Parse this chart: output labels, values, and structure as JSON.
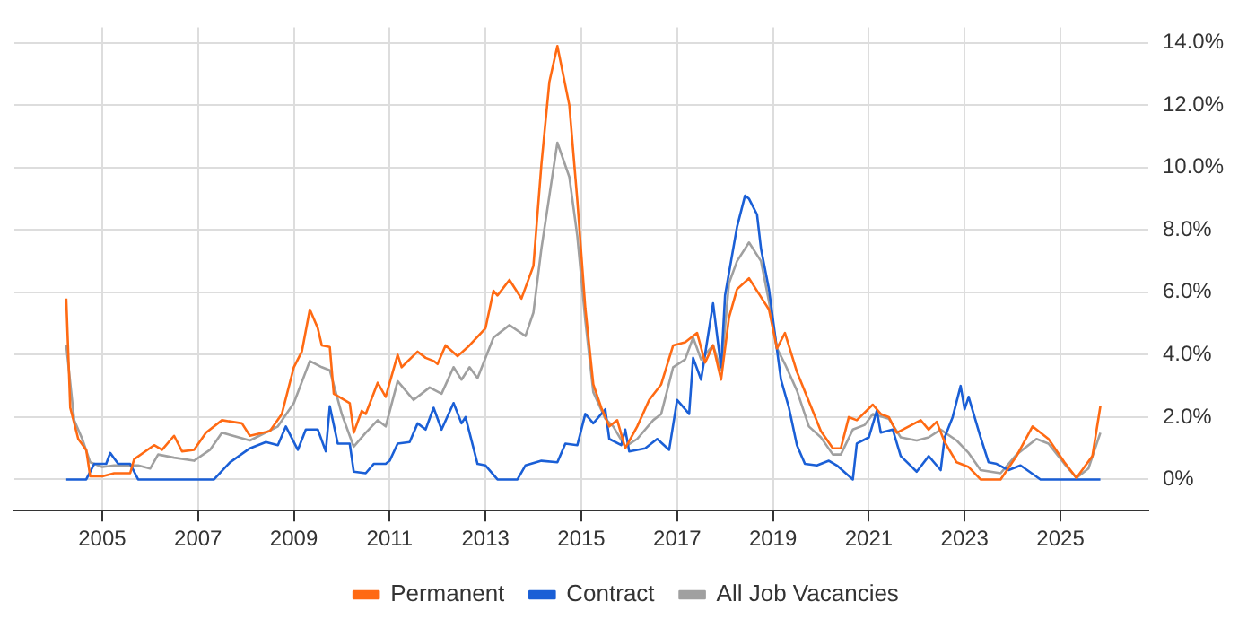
{
  "chart_data": {
    "type": "line",
    "xlim": [
      "2003-03",
      "2026-11"
    ],
    "xticks": [
      "2005",
      "2007",
      "2009",
      "2011",
      "2013",
      "2015",
      "2017",
      "2019",
      "2021",
      "2023",
      "2025"
    ],
    "ylim": [
      -1,
      14.5
    ],
    "yticks": [
      {
        "value": 0,
        "label": "0%"
      },
      {
        "value": 2,
        "label": "2.0%"
      },
      {
        "value": 4,
        "label": "4.0%"
      },
      {
        "value": 6,
        "label": "6.0%"
      },
      {
        "value": 8,
        "label": "8.0%"
      },
      {
        "value": 10,
        "label": "10.0%"
      },
      {
        "value": 12,
        "label": "12.0%"
      },
      {
        "value": 14,
        "label": "14.0%"
      }
    ],
    "grid": true,
    "legend": "bottom",
    "marker": "none",
    "line_style": "solid",
    "series": [
      {
        "name": "Permanent",
        "color": "#ff6a13",
        "x": [
          "2004-04",
          "2004-05",
          "2004-07",
          "2004-09",
          "2004-10",
          "2005-01",
          "2005-04",
          "2005-08",
          "2005-09",
          "2006-02",
          "2006-04",
          "2006-07",
          "2006-09",
          "2006-12",
          "2007-03",
          "2007-07",
          "2007-12",
          "2008-02",
          "2008-07",
          "2008-10",
          "2009-01",
          "2009-03",
          "2009-05",
          "2009-07",
          "2009-08",
          "2009-10",
          "2009-11",
          "2010-03",
          "2010-04",
          "2010-06",
          "2010-07",
          "2010-10",
          "2010-12",
          "2011-03",
          "2011-04",
          "2011-08",
          "2011-10",
          "2011-12",
          "2012-01",
          "2012-03",
          "2012-06",
          "2012-09",
          "2013-01",
          "2013-03",
          "2013-04",
          "2013-07",
          "2013-10",
          "2014-01",
          "2014-03",
          "2014-05",
          "2014-07",
          "2014-10",
          "2014-12",
          "2015-02",
          "2015-04",
          "2015-06",
          "2015-08",
          "2015-10",
          "2015-12",
          "2016-03",
          "2016-06",
          "2016-09",
          "2016-12",
          "2017-03",
          "2017-06",
          "2017-08",
          "2017-10",
          "2017-12",
          "2018-02",
          "2018-04",
          "2018-07",
          "2018-10",
          "2018-12",
          "2019-02",
          "2019-04",
          "2019-07",
          "2019-10",
          "2020-01",
          "2020-04",
          "2020-06",
          "2020-08",
          "2020-10",
          "2021-02",
          "2021-04",
          "2021-06",
          "2021-08",
          "2021-11",
          "2022-02",
          "2022-04",
          "2022-06",
          "2022-08",
          "2022-11",
          "2023-02",
          "2023-05",
          "2023-10",
          "2024-02",
          "2024-06",
          "2024-10",
          "2025-02",
          "2025-05",
          "2025-07",
          "2025-09",
          "2025-11"
        ],
        "values": [
          5.8,
          2.3,
          1.3,
          0.95,
          0.1,
          0.1,
          0.2,
          0.2,
          0.65,
          1.1,
          0.95,
          1.4,
          0.9,
          0.95,
          1.5,
          1.9,
          1.8,
          1.4,
          1.55,
          2.1,
          3.6,
          4.1,
          5.45,
          4.85,
          4.3,
          4.25,
          2.75,
          2.45,
          1.5,
          2.2,
          2.1,
          3.1,
          2.65,
          4.0,
          3.6,
          4.1,
          3.9,
          3.8,
          3.7,
          4.3,
          3.95,
          4.3,
          4.85,
          6.05,
          5.9,
          6.4,
          5.8,
          6.85,
          10.1,
          12.75,
          13.9,
          12.0,
          8.95,
          5.5,
          3.05,
          2.3,
          1.7,
          1.9,
          1.0,
          1.7,
          2.55,
          3.05,
          4.3,
          4.4,
          4.7,
          3.75,
          4.3,
          3.2,
          5.2,
          6.1,
          6.45,
          5.85,
          5.45,
          4.2,
          4.7,
          3.45,
          2.5,
          1.55,
          1.0,
          1.0,
          2.0,
          1.9,
          2.4,
          2.1,
          2.0,
          1.5,
          1.7,
          1.9,
          1.6,
          1.85,
          1.2,
          0.55,
          0.4,
          0,
          0,
          0.75,
          1.7,
          1.3,
          0.55,
          0.05,
          0.4,
          0.75,
          2.35
        ]
      },
      {
        "name": "Contract",
        "color": "#1a5fd6",
        "x": [
          "2004-04",
          "2004-09",
          "2004-11",
          "2005-02",
          "2005-03",
          "2005-05",
          "2005-08",
          "2005-10",
          "2007-05",
          "2007-09",
          "2008-02",
          "2008-06",
          "2008-09",
          "2008-11",
          "2009-02",
          "2009-04",
          "2009-07",
          "2009-09",
          "2009-10",
          "2009-12",
          "2010-03",
          "2010-04",
          "2010-07",
          "2010-09",
          "2010-12",
          "2011-01",
          "2011-03",
          "2011-06",
          "2011-08",
          "2011-10",
          "2011-12",
          "2012-02",
          "2012-05",
          "2012-07",
          "2012-08",
          "2012-11",
          "2013-01",
          "2013-04",
          "2013-09",
          "2013-11",
          "2014-03",
          "2014-07",
          "2014-09",
          "2014-12",
          "2015-02",
          "2015-04",
          "2015-07",
          "2015-08",
          "2015-11",
          "2015-12",
          "2016-01",
          "2016-05",
          "2016-08",
          "2016-11",
          "2017-01",
          "2017-04",
          "2017-05",
          "2017-07",
          "2017-10",
          "2017-12",
          "2018-01",
          "2018-04",
          "2018-06",
          "2018-07",
          "2018-09",
          "2018-10",
          "2018-12",
          "2019-03",
          "2019-05",
          "2019-07",
          "2019-09",
          "2019-12",
          "2020-03",
          "2020-05",
          "2020-09",
          "2020-10",
          "2021-01",
          "2021-03",
          "2021-04",
          "2021-07",
          "2021-09",
          "2022-01",
          "2022-04",
          "2022-07",
          "2022-08",
          "2022-10",
          "2022-12",
          "2023-01",
          "2023-02",
          "2023-05",
          "2023-07",
          "2023-09",
          "2023-12",
          "2024-03",
          "2024-08",
          "2025-11"
        ],
        "values": [
          0,
          0,
          0.5,
          0.5,
          0.85,
          0.5,
          0.5,
          0,
          0,
          0.55,
          1.0,
          1.2,
          1.1,
          1.7,
          0.95,
          1.6,
          1.6,
          0.9,
          2.35,
          1.15,
          1.15,
          0.25,
          0.2,
          0.5,
          0.5,
          0.6,
          1.15,
          1.2,
          1.8,
          1.6,
          2.3,
          1.6,
          2.45,
          1.8,
          2.0,
          0.5,
          0.45,
          0,
          0,
          0.45,
          0.6,
          0.55,
          1.15,
          1.1,
          2.1,
          1.8,
          2.25,
          1.3,
          1.1,
          1.6,
          0.9,
          1.0,
          1.3,
          0.95,
          2.55,
          2.1,
          3.9,
          3.2,
          5.65,
          3.6,
          5.9,
          8.1,
          9.1,
          9.0,
          8.5,
          7.4,
          6.1,
          3.2,
          2.3,
          1.1,
          0.5,
          0.45,
          0.6,
          0.45,
          0,
          1.15,
          1.35,
          2.2,
          1.5,
          1.6,
          0.75,
          0.25,
          0.75,
          0.3,
          1.35,
          2.0,
          3.0,
          2.25,
          2.65,
          1.35,
          0.55,
          0.5,
          0.3,
          0.45,
          0,
          0
        ]
      },
      {
        "name": "All Job Vacancies",
        "color": "#a0a0a0",
        "x": [
          "2004-04",
          "2004-06",
          "2004-08",
          "2004-10",
          "2005-01",
          "2005-04",
          "2005-10",
          "2006-01",
          "2006-03",
          "2006-07",
          "2006-12",
          "2007-04",
          "2007-07",
          "2008-02",
          "2008-09",
          "2009-01",
          "2009-05",
          "2009-08",
          "2009-10",
          "2010-01",
          "2010-04",
          "2010-07",
          "2010-10",
          "2010-12",
          "2011-03",
          "2011-07",
          "2011-11",
          "2012-02",
          "2012-05",
          "2012-07",
          "2012-09",
          "2012-11",
          "2013-03",
          "2013-07",
          "2013-11",
          "2014-01",
          "2014-03",
          "2014-07",
          "2014-10",
          "2014-12",
          "2015-02",
          "2015-04",
          "2015-07",
          "2015-09",
          "2015-12",
          "2016-03",
          "2016-07",
          "2016-09",
          "2016-12",
          "2017-03",
          "2017-05",
          "2017-07",
          "2017-10",
          "2017-12",
          "2018-02",
          "2018-04",
          "2018-07",
          "2018-10",
          "2018-12",
          "2019-02",
          "2019-04",
          "2019-07",
          "2019-10",
          "2020-01",
          "2020-04",
          "2020-06",
          "2020-09",
          "2020-12",
          "2021-02",
          "2021-06",
          "2021-09",
          "2022-01",
          "2022-04",
          "2022-07",
          "2022-11",
          "2023-02",
          "2023-05",
          "2023-10",
          "2024-02",
          "2024-07",
          "2024-10",
          "2025-02",
          "2025-05",
          "2025-08",
          "2025-11"
        ],
        "values": [
          4.3,
          1.9,
          1.3,
          0.55,
          0.4,
          0.45,
          0.45,
          0.35,
          0.8,
          0.7,
          0.6,
          0.95,
          1.5,
          1.25,
          1.7,
          2.45,
          3.8,
          3.6,
          3.5,
          2.1,
          1.05,
          1.5,
          1.9,
          1.7,
          3.15,
          2.55,
          2.95,
          2.75,
          3.6,
          3.2,
          3.6,
          3.25,
          4.55,
          4.95,
          4.6,
          5.35,
          7.4,
          10.8,
          9.7,
          7.8,
          5.1,
          2.8,
          1.95,
          1.7,
          1.05,
          1.3,
          1.9,
          2.1,
          3.6,
          3.85,
          4.55,
          3.85,
          4.3,
          3.5,
          6.3,
          7.0,
          7.6,
          7.0,
          5.7,
          4.2,
          3.7,
          2.85,
          1.7,
          1.35,
          0.8,
          0.8,
          1.6,
          1.75,
          2.1,
          1.95,
          1.35,
          1.25,
          1.35,
          1.6,
          1.25,
          0.85,
          0.3,
          0.2,
          0.8,
          1.3,
          1.15,
          0.5,
          0.05,
          0.35,
          1.5
        ]
      }
    ]
  }
}
